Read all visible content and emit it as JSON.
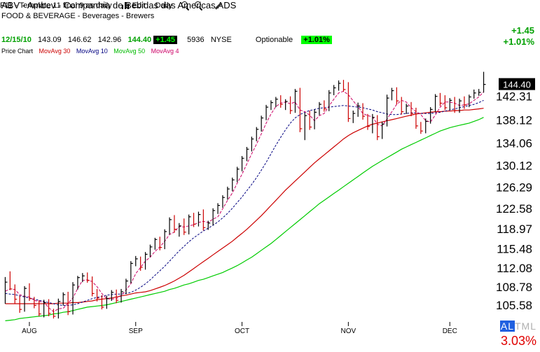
{
  "header": {
    "title": "ABV - Ambev - Companhia de Bebidas das Americas ADS",
    "industry": "FOOD & BEVERAGE - Beverages - Brewers",
    "template": "F11 - Template 11 final 9 as daily",
    "edit_label": "Edit",
    "period_label": "Daily",
    "change_chip": "+1.45",
    "shares": "5936",
    "exchange": "NYSE",
    "optionable_label": "Optionable",
    "pct_chip": "+1.01%"
  },
  "quote": {
    "date": "12/15/10",
    "open": "143.09",
    "high": "146.62",
    "low": "142.96",
    "close": "144.40",
    "change_chip": "+1.45"
  },
  "right_panel": {
    "change": "+1.45",
    "pct_change": "+1.01%",
    "altml_prefix": "AL",
    "altml_rest": "TML",
    "bottom_pct": "3.03%"
  },
  "legend": {
    "price_chart": "Price Chart",
    "ma30": "MovAvg 30",
    "ma10": "MovAvg 10",
    "ma50": "MovAvg 50",
    "ma4": "MovAvg 4"
  },
  "colors": {
    "up_bar": "#000000",
    "down_bar": "#cc0000",
    "ma30": "#cc0000",
    "ma10": "#000080",
    "ma50": "#00cc00",
    "ma4": "#cc0066",
    "last_price_bg": "#000000",
    "last_price_fg": "#ffffff",
    "grid": "#ffffff"
  },
  "chart_data": {
    "type": "line",
    "title": "ABV - Ambev - Companhia de Bebidas das Americas ADS",
    "xlabel": "",
    "ylabel": "",
    "ylim": [
      102.6,
      149.9
    ],
    "y_ticks": [
      "142.31",
      "138.12",
      "134.06",
      "130.12",
      "126.29",
      "122.58",
      "118.97",
      "115.48",
      "112.08",
      "108.78",
      "105.58"
    ],
    "y_tick_values": [
      142.31,
      138.12,
      134.06,
      130.12,
      126.29,
      122.58,
      118.97,
      115.48,
      112.08,
      108.78,
      105.58
    ],
    "x_tick_labels": [
      "AUG",
      "SEP",
      "OCT",
      "NOV",
      "DEC"
    ],
    "x_tick_index": [
      5,
      27,
      49,
      71,
      92
    ],
    "last_price_label": "144.40",
    "last_price": 144.4,
    "bar_count": 100,
    "ohlc": [
      [
        106.5,
        110.5,
        105.8,
        109.6
      ],
      [
        109.6,
        111.5,
        108.2,
        108.4
      ],
      [
        108.4,
        109.2,
        105.8,
        106.6
      ],
      [
        106.6,
        107.2,
        104.2,
        104.8
      ],
      [
        104.8,
        108.9,
        104.4,
        108.5
      ],
      [
        108.5,
        109.4,
        106.3,
        106.7
      ],
      [
        106.7,
        107.0,
        105.0,
        105.5
      ],
      [
        105.5,
        106.4,
        103.6,
        104.0
      ],
      [
        104.0,
        106.5,
        103.4,
        106.0
      ],
      [
        106.0,
        106.6,
        103.6,
        104.1
      ],
      [
        104.1,
        104.9,
        103.2,
        103.6
      ],
      [
        103.6,
        106.7,
        103.2,
        106.2
      ],
      [
        106.2,
        107.8,
        105.5,
        107.4
      ],
      [
        107.4,
        107.9,
        103.8,
        104.4
      ],
      [
        104.4,
        109.6,
        103.9,
        109.1
      ],
      [
        109.1,
        110.7,
        108.3,
        110.4
      ],
      [
        110.4,
        111.2,
        109.6,
        110.7
      ],
      [
        110.7,
        111.3,
        109.5,
        109.9
      ],
      [
        109.9,
        110.6,
        107.1,
        107.6
      ],
      [
        107.6,
        108.4,
        106.2,
        106.8
      ],
      [
        106.8,
        107.3,
        104.8,
        105.2
      ],
      [
        105.2,
        107.2,
        104.9,
        106.7
      ],
      [
        106.7,
        108.2,
        106.3,
        107.8
      ],
      [
        107.8,
        108.3,
        105.9,
        106.4
      ],
      [
        106.4,
        108.4,
        106.0,
        107.9
      ],
      [
        107.9,
        110.2,
        107.5,
        109.8
      ],
      [
        109.8,
        113.3,
        109.4,
        112.9
      ],
      [
        112.9,
        114.2,
        112.4,
        113.7
      ],
      [
        113.7,
        114.1,
        111.6,
        112.2
      ],
      [
        112.2,
        114.9,
        111.8,
        114.5
      ],
      [
        114.5,
        116.2,
        114.0,
        115.8
      ],
      [
        115.8,
        117.4,
        115.3,
        117.1
      ],
      [
        117.1,
        117.6,
        115.2,
        115.7
      ],
      [
        115.7,
        118.9,
        115.4,
        118.5
      ],
      [
        118.5,
        121.0,
        118.0,
        120.6
      ],
      [
        120.6,
        121.4,
        118.3,
        118.9
      ],
      [
        118.9,
        120.0,
        117.6,
        119.5
      ],
      [
        119.5,
        120.8,
        117.9,
        118.4
      ],
      [
        118.4,
        121.5,
        118.0,
        121.1
      ],
      [
        121.1,
        121.8,
        119.3,
        119.8
      ],
      [
        119.8,
        122.0,
        119.4,
        121.5
      ],
      [
        121.5,
        122.4,
        118.7,
        119.2
      ],
      [
        119.2,
        120.4,
        118.8,
        120.0
      ],
      [
        120.0,
        122.6,
        119.6,
        122.2
      ],
      [
        122.2,
        123.5,
        121.6,
        123.1
      ],
      [
        123.1,
        124.9,
        122.7,
        124.5
      ],
      [
        124.5,
        126.4,
        124.1,
        126.0
      ],
      [
        126.0,
        128.0,
        125.6,
        127.6
      ],
      [
        127.6,
        129.9,
        127.2,
        129.5
      ],
      [
        129.5,
        131.8,
        129.1,
        131.4
      ],
      [
        131.4,
        133.4,
        130.9,
        133.0
      ],
      [
        133.0,
        135.2,
        132.6,
        134.8
      ],
      [
        134.8,
        136.9,
        134.4,
        136.5
      ],
      [
        136.5,
        138.9,
        136.1,
        138.5
      ],
      [
        138.5,
        140.8,
        138.1,
        140.4
      ],
      [
        140.4,
        141.6,
        139.9,
        141.2
      ],
      [
        141.2,
        142.2,
        140.4,
        141.8
      ],
      [
        141.8,
        142.5,
        140.3,
        140.9
      ],
      [
        140.9,
        141.8,
        139.9,
        141.4
      ],
      [
        141.4,
        142.3,
        139.2,
        139.8
      ],
      [
        139.8,
        143.6,
        139.4,
        143.2
      ],
      [
        143.2,
        143.8,
        136.0,
        136.6
      ],
      [
        136.6,
        139.4,
        134.6,
        138.9
      ],
      [
        138.9,
        139.8,
        136.4,
        136.9
      ],
      [
        136.9,
        140.0,
        136.5,
        139.5
      ],
      [
        139.5,
        141.3,
        139.0,
        140.9
      ],
      [
        140.9,
        141.6,
        139.6,
        140.1
      ],
      [
        140.1,
        143.4,
        139.7,
        142.9
      ],
      [
        142.9,
        144.3,
        142.5,
        143.8
      ],
      [
        143.8,
        145.1,
        143.3,
        144.6
      ],
      [
        144.6,
        145.2,
        143.1,
        143.5
      ],
      [
        143.5,
        144.8,
        137.8,
        138.4
      ],
      [
        138.4,
        139.8,
        137.6,
        139.3
      ],
      [
        139.3,
        141.2,
        138.7,
        140.6
      ],
      [
        140.6,
        141.1,
        138.2,
        138.8
      ],
      [
        138.8,
        139.2,
        136.4,
        137.0
      ],
      [
        137.0,
        139.2,
        135.8,
        138.6
      ],
      [
        138.6,
        139.0,
        134.6,
        135.2
      ],
      [
        135.2,
        137.8,
        134.8,
        137.4
      ],
      [
        137.4,
        142.6,
        137.0,
        142.0
      ],
      [
        142.0,
        143.8,
        141.6,
        143.3
      ],
      [
        143.3,
        143.9,
        140.9,
        141.5
      ],
      [
        141.5,
        142.2,
        139.1,
        139.6
      ],
      [
        139.6,
        141.0,
        139.2,
        140.6
      ],
      [
        140.6,
        141.3,
        138.8,
        139.3
      ],
      [
        139.3,
        140.3,
        136.6,
        137.1
      ],
      [
        137.1,
        137.8,
        135.7,
        136.2
      ],
      [
        136.2,
        138.4,
        135.8,
        137.9
      ],
      [
        137.9,
        140.4,
        137.5,
        140.0
      ],
      [
        140.0,
        142.7,
        139.6,
        142.3
      ],
      [
        142.3,
        142.9,
        140.6,
        141.1
      ],
      [
        141.1,
        142.5,
        139.9,
        140.3
      ],
      [
        140.3,
        142.0,
        139.9,
        141.6
      ],
      [
        141.6,
        142.2,
        139.4,
        139.8
      ],
      [
        139.8,
        141.9,
        139.4,
        141.5
      ],
      [
        141.5,
        142.3,
        140.1,
        140.8
      ],
      [
        140.8,
        142.6,
        140.4,
        142.2
      ],
      [
        142.2,
        143.5,
        141.9,
        142.9
      ],
      [
        142.9,
        143.6,
        142.4,
        143.0
      ],
      [
        143.09,
        146.62,
        142.96,
        144.4
      ]
    ],
    "series": [
      {
        "name": "MovAvg 30",
        "values": [
          105.8,
          105.8,
          105.8,
          105.8,
          105.8,
          105.8,
          105.8,
          105.8,
          105.8,
          105.8,
          105.8,
          105.9,
          105.9,
          105.9,
          106.0,
          106.0,
          106.1,
          106.2,
          106.3,
          106.5,
          106.6,
          106.7,
          106.8,
          107.0,
          107.2,
          107.3,
          107.5,
          107.7,
          107.8,
          107.9,
          108.1,
          108.4,
          108.7,
          109.0,
          109.4,
          109.8,
          110.3,
          110.8,
          111.4,
          112.0,
          112.6,
          113.2,
          113.8,
          114.4,
          115.0,
          115.6,
          116.2,
          116.8,
          117.5,
          118.2,
          118.9,
          119.7,
          120.5,
          121.3,
          122.2,
          123.1,
          124.0,
          124.9,
          125.8,
          126.6,
          127.4,
          128.2,
          129.0,
          129.8,
          130.6,
          131.3,
          132.0,
          132.7,
          133.4,
          134.1,
          134.8,
          135.4,
          135.9,
          136.3,
          136.7,
          137.1,
          137.4,
          137.6,
          137.8,
          138.0,
          138.2,
          138.4,
          138.6,
          138.8,
          139.0,
          139.2,
          139.3,
          139.4,
          139.5,
          139.6,
          139.6,
          139.7,
          139.7,
          139.8,
          139.8,
          139.9,
          139.9,
          140.0,
          140.1,
          140.2
        ]
      },
      {
        "name": "MovAvg 10",
        "values": [
          107.6,
          107.5,
          107.4,
          107.2,
          107.0,
          106.8,
          106.6,
          106.4,
          106.2,
          106.0,
          105.8,
          105.6,
          105.5,
          105.5,
          105.6,
          105.8,
          106.1,
          106.4,
          106.7,
          106.9,
          107.1,
          107.3,
          107.4,
          107.5,
          107.5,
          107.6,
          107.8,
          108.2,
          108.7,
          109.3,
          110.0,
          110.8,
          111.6,
          112.4,
          113.3,
          114.2,
          115.1,
          115.9,
          116.7,
          117.4,
          118.0,
          118.6,
          119.1,
          119.6,
          120.2,
          120.9,
          121.7,
          122.6,
          123.6,
          124.6,
          125.7,
          126.8,
          128.0,
          129.3,
          130.7,
          132.2,
          133.7,
          135.1,
          136.4,
          137.6,
          138.5,
          139.1,
          139.5,
          139.8,
          140.0,
          140.2,
          140.3,
          140.4,
          140.5,
          140.6,
          140.7,
          140.6,
          140.5,
          140.4,
          140.3,
          140.1,
          139.9,
          139.6,
          139.4,
          139.2,
          139.1,
          139.1,
          139.2,
          139.3,
          139.4,
          139.4,
          139.3,
          139.3,
          139.3,
          139.4,
          139.5,
          139.7,
          139.9,
          140.1,
          140.3,
          140.5,
          140.7,
          140.9,
          141.2,
          141.6
        ]
      },
      {
        "name": "MovAvg 50",
        "values": [
          102.8,
          102.9,
          103.0,
          103.2,
          103.3,
          103.4,
          103.5,
          103.6,
          103.7,
          103.8,
          104.0,
          104.1,
          104.3,
          104.4,
          104.6,
          104.8,
          105.0,
          105.2,
          105.3,
          105.4,
          105.5,
          105.6,
          105.8,
          106.0,
          106.2,
          106.4,
          106.6,
          106.8,
          107.0,
          107.2,
          107.4,
          107.6,
          107.8,
          108.0,
          108.3,
          108.5,
          108.8,
          109.1,
          109.3,
          109.6,
          109.9,
          110.1,
          110.4,
          110.7,
          111.0,
          111.3,
          111.7,
          112.1,
          112.5,
          113.0,
          113.5,
          114.0,
          114.6,
          115.2,
          115.8,
          116.4,
          117.1,
          117.8,
          118.5,
          119.2,
          119.9,
          120.6,
          121.3,
          122.0,
          122.7,
          123.4,
          124.0,
          124.6,
          125.2,
          125.8,
          126.4,
          127.0,
          127.6,
          128.2,
          128.8,
          129.4,
          130.0,
          130.5,
          131.0,
          131.5,
          132.0,
          132.5,
          133.0,
          133.4,
          133.8,
          134.2,
          134.6,
          135.0,
          135.4,
          135.8,
          136.2,
          136.5,
          136.8,
          137.0,
          137.2,
          137.4,
          137.6,
          137.9,
          138.2,
          138.6
        ]
      },
      {
        "name": "MovAvg 4",
        "values": [
          108.0,
          108.4,
          108.3,
          107.4,
          107.1,
          107.0,
          106.4,
          106.2,
          106.1,
          105.1,
          104.4,
          104.9,
          105.0,
          105.9,
          106.8,
          108.5,
          109.9,
          110.0,
          109.7,
          108.8,
          107.6,
          106.7,
          106.6,
          106.7,
          107.2,
          108.2,
          109.3,
          111.1,
          112.2,
          113.3,
          114.0,
          115.0,
          115.8,
          116.8,
          118.0,
          118.4,
          119.4,
          119.3,
          119.5,
          119.7,
          120.1,
          120.3,
          120.1,
          120.7,
          121.1,
          122.5,
          124.0,
          125.3,
          127.0,
          128.6,
          130.4,
          132.2,
          133.9,
          135.7,
          137.6,
          139.2,
          140.5,
          141.1,
          141.3,
          141.0,
          141.3,
          139.9,
          139.6,
          139.0,
          138.0,
          138.9,
          139.3,
          140.6,
          141.8,
          142.9,
          143.2,
          142.6,
          141.5,
          140.5,
          139.3,
          138.9,
          138.7,
          137.4,
          137.1,
          138.3,
          139.6,
          140.9,
          141.6,
          141.3,
          140.3,
          139.6,
          139.1,
          138.0,
          137.8,
          139.0,
          140.4,
          141.3,
          141.3,
          141.1,
          140.7,
          140.8,
          141.0,
          141.6,
          142.2,
          143.1
        ]
      }
    ]
  }
}
